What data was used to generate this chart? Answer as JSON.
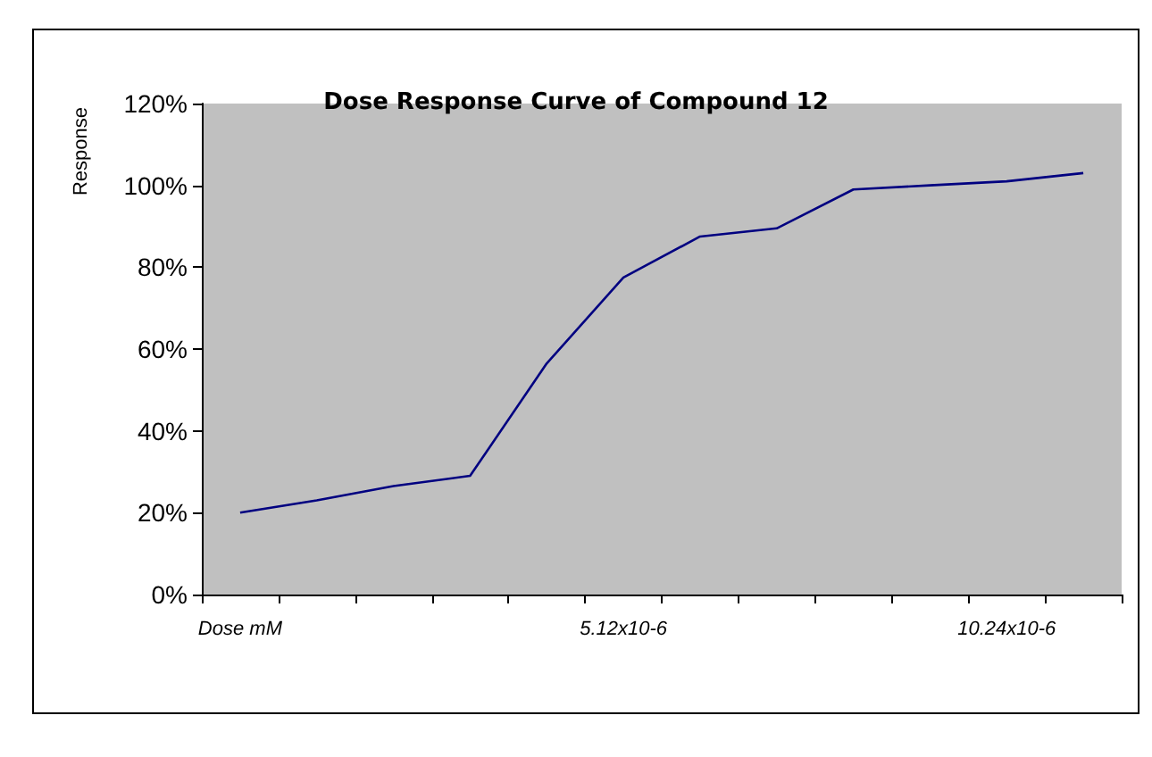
{
  "chart_data": {
    "type": "line",
    "title": "Dose Response Curve of Compound 12",
    "ylabel": "Response",
    "categories": [
      "Dose mM",
      null,
      null,
      null,
      null,
      "5.12x10-6",
      null,
      null,
      null,
      null,
      "10.24x10-6",
      null
    ],
    "series": [
      {
        "color": "#000080",
        "values": [
          20,
          23,
          26.5,
          29,
          56.5,
          77.5,
          87.5,
          89.5,
          99,
          100,
          101,
          103
        ]
      }
    ],
    "ylim": [
      0,
      120
    ],
    "yticks": [
      {
        "value": 0,
        "label": "0%"
      },
      {
        "value": 20,
        "label": "20%"
      },
      {
        "value": 40,
        "label": "40%"
      },
      {
        "value": 60,
        "label": "60%"
      },
      {
        "value": 80,
        "label": "80%"
      },
      {
        "value": 100,
        "label": "100%"
      },
      {
        "value": 120,
        "label": "120%"
      }
    ],
    "grid": false,
    "marker": "none",
    "line_style": "solid"
  }
}
